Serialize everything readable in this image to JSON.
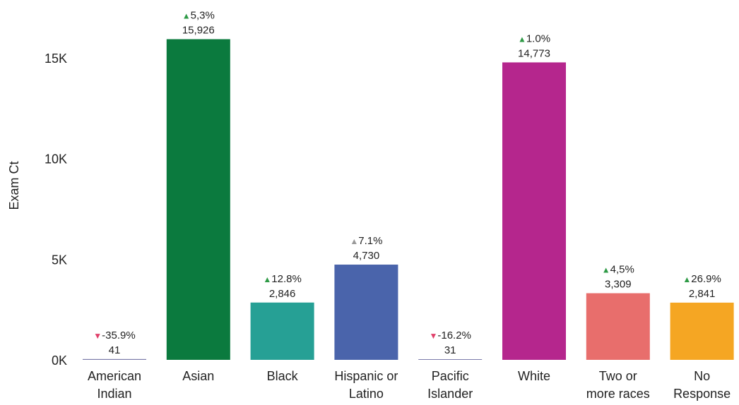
{
  "chart_data": {
    "type": "bar",
    "ylabel": "Exam Ct",
    "ylim": [
      0,
      16400
    ],
    "yticks": [
      {
        "value": 0,
        "label": "0K"
      },
      {
        "value": 5000,
        "label": "5K"
      },
      {
        "value": 10000,
        "label": "10K"
      },
      {
        "value": 15000,
        "label": "15K"
      }
    ],
    "categories": [
      {
        "lines": [
          "American",
          "Indian"
        ]
      },
      {
        "lines": [
          "Asian"
        ]
      },
      {
        "lines": [
          "Black"
        ]
      },
      {
        "lines": [
          "Hispanic or",
          "Latino"
        ]
      },
      {
        "lines": [
          "Pacific",
          "Islander"
        ]
      },
      {
        "lines": [
          "White"
        ]
      },
      {
        "lines": [
          "Two or",
          "more races"
        ]
      },
      {
        "lines": [
          "No",
          "Response"
        ]
      }
    ],
    "values": [
      41,
      15926,
      2846,
      4730,
      31,
      14773,
      3309,
      2841
    ],
    "value_labels": [
      "41",
      "15,926",
      "2,846",
      "4,730",
      "31",
      "14,773",
      "3,309",
      "2,841"
    ],
    "changes": [
      {
        "text": "-35.9%",
        "direction": "down"
      },
      {
        "text": "5,3%",
        "direction": "up"
      },
      {
        "text": "12.8%",
        "direction": "up"
      },
      {
        "text": "7.1%",
        "direction": "up"
      },
      {
        "text": "-16.2%",
        "direction": "down"
      },
      {
        "text": "1.0%",
        "direction": "up"
      },
      {
        "text": "4,5%",
        "direction": "up"
      },
      {
        "text": "26.9%",
        "direction": "up"
      }
    ],
    "colors": [
      "#7a7aa8",
      "#0b7a3e",
      "#26a095",
      "#4a64ab",
      "#7b7baa",
      "#b5268d",
      "#e86e6c",
      "#f5a623"
    ],
    "arrow_colors": {
      "up": [
        "#9a9a9a",
        "#2e9a46",
        "#2e9a46",
        "#9a9a9a",
        "#2e9a46",
        "#2e9a46",
        "#2e9a46",
        "#2e9a46"
      ],
      "down": "#e0406a"
    },
    "arrow_glyphs": {
      "up": "▲",
      "down": "▼"
    },
    "grid": false
  }
}
